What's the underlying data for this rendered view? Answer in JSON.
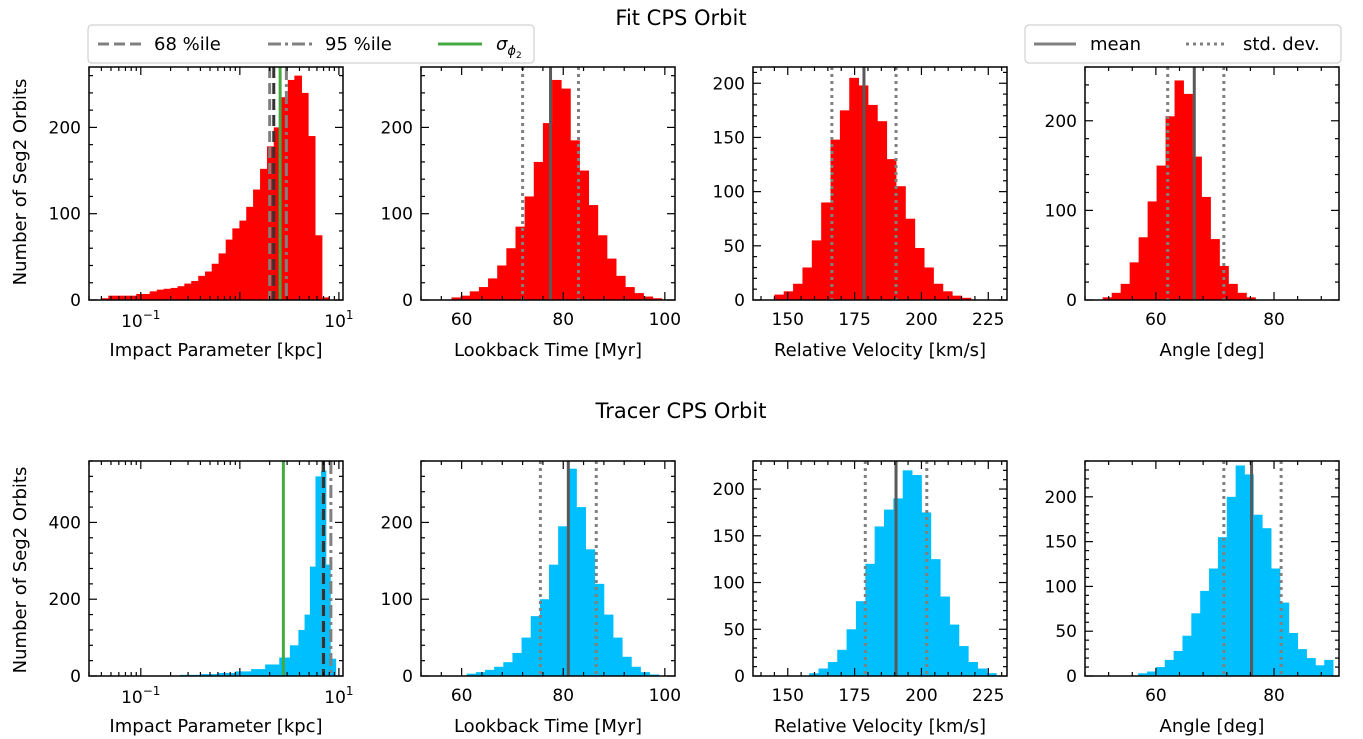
{
  "rows": [
    {
      "title": "Fit CPS Orbit",
      "color": "#ff0000",
      "ylabel": "Number of Seg2 Orbits",
      "legend_left": {
        "entries": [
          {
            "label": "68 %ile",
            "style": "dashed"
          },
          {
            "label": "95 %ile",
            "style": "dashdot"
          },
          {
            "label": "σ",
            "sub": "ϕ",
            "subsub": "2",
            "style": "solid-green"
          }
        ]
      },
      "legend_right": {
        "entries": [
          {
            "label": "mean",
            "style": "solid"
          },
          {
            "label": "std. dev.",
            "style": "dotted"
          }
        ]
      }
    },
    {
      "title": "Tracer CPS Orbit",
      "color": "#00bfff",
      "ylabel": "Number of Seg2 Orbits"
    }
  ],
  "chart_data": [
    {
      "type": "bar",
      "row": 0,
      "col": 0,
      "log_x": true,
      "xlabel": "Impact Parameter [kpc]",
      "xlim": [
        0.03,
        11
      ],
      "ylim": [
        0,
        270
      ],
      "xticks": [
        {
          "v": 0.1,
          "base": "10",
          "exp": "−1"
        },
        {
          "v": 10,
          "base": "10",
          "exp": "1"
        }
      ],
      "yticks": [
        0,
        100,
        200
      ],
      "bin_edges": [
        0.04,
        0.047,
        0.055,
        0.065,
        0.076,
        0.09,
        0.105,
        0.123,
        0.145,
        0.17,
        0.2,
        0.235,
        0.275,
        0.323,
        0.38,
        0.445,
        0.52,
        0.61,
        0.72,
        0.84,
        0.99,
        1.16,
        1.36,
        1.6,
        1.88,
        2.2,
        2.6,
        3.05,
        3.55,
        4.2,
        4.9,
        5.75,
        6.75,
        7.9
      ],
      "counts": [
        2,
        5,
        5,
        5,
        5,
        7,
        7,
        10,
        12,
        13,
        14,
        16,
        19,
        22,
        28,
        33,
        42,
        54,
        70,
        83,
        92,
        108,
        128,
        152,
        178,
        200,
        235,
        255,
        260,
        240,
        190,
        75,
        3
      ],
      "vlines": [
        {
          "x": 2.2,
          "style": "dashed-dark"
        },
        {
          "x": 2.55,
          "style": "solid-green"
        },
        {
          "x": 2.95,
          "style": "dashdot"
        },
        {
          "x": 2.0,
          "style": "dashed"
        }
      ]
    },
    {
      "type": "bar",
      "row": 0,
      "col": 1,
      "xlabel": "Lookback Time [Myr]",
      "xlim": [
        52,
        102
      ],
      "ylim": [
        0,
        270
      ],
      "xticks": [
        60,
        80,
        100
      ],
      "yticks": [
        0,
        100,
        200
      ],
      "bin_start": 58,
      "bin_width": 1.8,
      "counts": [
        3,
        5,
        10,
        15,
        25,
        40,
        60,
        85,
        120,
        160,
        205,
        255,
        245,
        185,
        150,
        110,
        75,
        48,
        28,
        15,
        8,
        4,
        2
      ],
      "vlines": [
        {
          "x": 77.5,
          "style": "mean"
        },
        {
          "x": 72,
          "style": "dotted"
        },
        {
          "x": 83,
          "style": "dotted"
        }
      ]
    },
    {
      "type": "bar",
      "row": 0,
      "col": 2,
      "xlabel": "Relative Velocity [km/s]",
      "xlim": [
        137,
        232
      ],
      "ylim": [
        0,
        215
      ],
      "xticks": [
        150,
        175,
        200,
        225
      ],
      "yticks": [
        0,
        50,
        100,
        150,
        200
      ],
      "bin_start": 145,
      "bin_width": 3.5,
      "counts": [
        5,
        8,
        15,
        30,
        55,
        90,
        148,
        175,
        205,
        198,
        180,
        165,
        130,
        105,
        75,
        48,
        30,
        15,
        8,
        4,
        2
      ],
      "vlines": [
        {
          "x": 178.5,
          "style": "mean"
        },
        {
          "x": 166.5,
          "style": "dotted"
        },
        {
          "x": 190.5,
          "style": "dotted"
        }
      ]
    },
    {
      "type": "bar",
      "row": 0,
      "col": 3,
      "xlabel": "Angle [deg]",
      "xlim": [
        48,
        91
      ],
      "ylim": [
        0,
        260
      ],
      "xticks": [
        60,
        80
      ],
      "yticks": [
        0,
        100,
        200
      ],
      "bin_start": 51,
      "bin_width": 1.52,
      "counts": [
        3,
        8,
        18,
        42,
        70,
        110,
        150,
        205,
        245,
        230,
        160,
        115,
        68,
        38,
        18,
        8,
        3
      ],
      "vlines": [
        {
          "x": 66.5,
          "style": "mean"
        },
        {
          "x": 62,
          "style": "dotted"
        },
        {
          "x": 71.5,
          "style": "dotted"
        }
      ]
    },
    {
      "type": "bar",
      "row": 1,
      "col": 0,
      "log_x": true,
      "xlabel": "Impact Parameter [kpc]",
      "xlim": [
        0.03,
        11
      ],
      "ylim": [
        0,
        560
      ],
      "xticks": [
        {
          "v": 0.1,
          "base": "10",
          "exp": "−1"
        },
        {
          "v": 10,
          "base": "10",
          "exp": "1"
        }
      ],
      "yticks": [
        0,
        200,
        400
      ],
      "bin_edges": [
        0.15,
        0.25,
        0.4,
        0.6,
        0.9,
        1.3,
        1.8,
        2.5,
        3.2,
        3.9,
        4.5,
        5.1,
        5.8,
        6.6,
        7.4,
        8.2,
        9.3
      ],
      "counts": [
        1,
        3,
        5,
        8,
        12,
        18,
        30,
        48,
        80,
        120,
        160,
        285,
        520,
        535,
        290,
        45
      ],
      "vlines": [
        {
          "x": 2.75,
          "style": "solid-green"
        },
        {
          "x": 6.9,
          "style": "dashed"
        },
        {
          "x": 7.0,
          "style": "dashed-dark"
        },
        {
          "x": 8.3,
          "style": "dashdot"
        }
      ]
    },
    {
      "type": "bar",
      "row": 1,
      "col": 1,
      "xlabel": "Lookback Time [Myr]",
      "xlim": [
        52,
        102
      ],
      "ylim": [
        0,
        280
      ],
      "xticks": [
        60,
        80,
        100
      ],
      "yticks": [
        0,
        100,
        200
      ],
      "bin_start": 61,
      "bin_width": 1.8,
      "counts": [
        3,
        5,
        8,
        12,
        18,
        30,
        50,
        78,
        100,
        145,
        195,
        270,
        220,
        165,
        120,
        80,
        50,
        25,
        12,
        5,
        2
      ],
      "vlines": [
        {
          "x": 81,
          "style": "mean"
        },
        {
          "x": 75.5,
          "style": "dotted"
        },
        {
          "x": 86.5,
          "style": "dotted"
        }
      ]
    },
    {
      "type": "bar",
      "row": 1,
      "col": 2,
      "xlabel": "Relative Velocity [km/s]",
      "xlim": [
        137,
        232
      ],
      "ylim": [
        0,
        230
      ],
      "xticks": [
        150,
        175,
        200,
        225
      ],
      "yticks": [
        0,
        50,
        100,
        150,
        200
      ],
      "bin_start": 158,
      "bin_width": 3.5,
      "counts": [
        3,
        8,
        15,
        28,
        50,
        80,
        120,
        160,
        178,
        190,
        220,
        215,
        175,
        125,
        85,
        55,
        32,
        15,
        8,
        3
      ],
      "vlines": [
        {
          "x": 190.5,
          "style": "mean"
        },
        {
          "x": 179,
          "style": "dotted"
        },
        {
          "x": 202,
          "style": "dotted"
        }
      ]
    },
    {
      "type": "bar",
      "row": 1,
      "col": 3,
      "xlabel": "Angle [deg]",
      "xlim": [
        48,
        91
      ],
      "ylim": [
        0,
        240
      ],
      "xticks": [
        60,
        80
      ],
      "yticks": [
        0,
        50,
        100,
        150,
        200
      ],
      "bin_start": 57,
      "bin_width": 1.5,
      "counts": [
        3,
        5,
        10,
        18,
        28,
        45,
        70,
        95,
        120,
        155,
        200,
        235,
        225,
        180,
        165,
        120,
        82,
        48,
        30,
        20,
        12,
        18
      ],
      "vlines": [
        {
          "x": 76.2,
          "style": "mean"
        },
        {
          "x": 71.5,
          "style": "dotted"
        },
        {
          "x": 81.2,
          "style": "dotted"
        }
      ]
    }
  ]
}
